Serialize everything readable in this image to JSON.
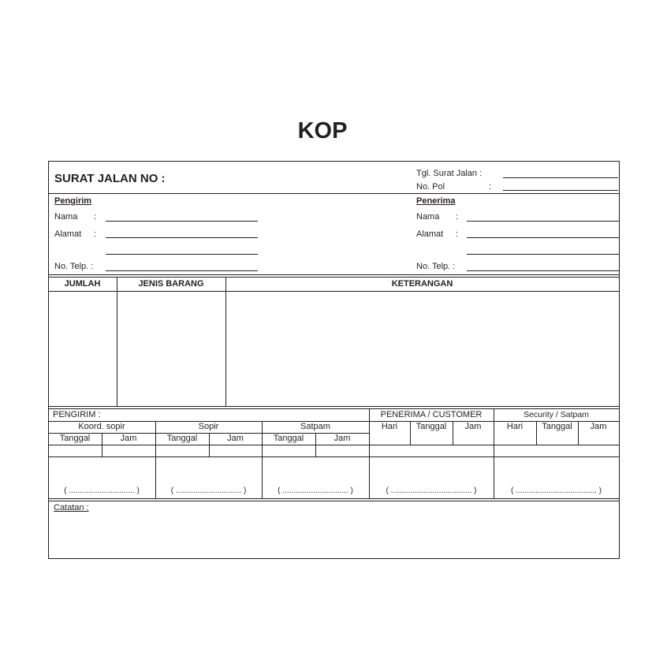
{
  "kop": "KOP",
  "header": {
    "title": "SURAT JALAN NO :",
    "tgl_label": "Tgl. Surat Jalan :",
    "nopol_label": "No. Pol",
    "nopol_colon": ":"
  },
  "pengirim": {
    "heading": "Pengirim",
    "nama": "Nama",
    "alamat": "Alamat",
    "telp": "No. Telp. :",
    "colon": ":"
  },
  "penerima": {
    "heading": "Penerima",
    "nama": "Nama",
    "alamat": "Alamat",
    "telp": "No. Telp. :",
    "colon": ":"
  },
  "items_table": {
    "columns": [
      "JUMLAH",
      "JENIS BARANG",
      "KETERANGAN"
    ]
  },
  "sign": {
    "pengirim": "PENGIRIM :",
    "penerima": "PENERIMA / CUSTOMER",
    "security": "Security / Satpam",
    "koord": "Koord. sopir",
    "sopir": "Sopir",
    "satpam": "Satpam",
    "tanggal": "Tanggal",
    "jam": "Jam",
    "hari": "Hari",
    "sig_short": "( .............................. )",
    "sig_long": "( ..................................... )"
  },
  "catatan": "Catatan :"
}
